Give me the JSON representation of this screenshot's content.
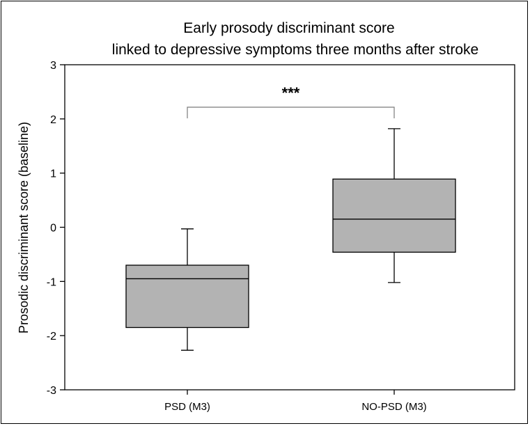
{
  "chart_data": {
    "type": "box",
    "title": [
      "Early prosody discriminant score",
      "linked to depressive symptoms three months after stroke"
    ],
    "xlabel": "",
    "ylabel": "Prosodic discriminant score  (baseline)",
    "ylim": [
      -3,
      3
    ],
    "yticks": [
      "3",
      "2",
      "1",
      "0",
      "-1",
      "-2",
      "-3"
    ],
    "ytick_values": [
      3,
      2,
      1,
      0,
      -1,
      -2,
      -3
    ],
    "categories": [
      "PSD (M3)",
      "NO-PSD (M3)"
    ],
    "boxes": [
      {
        "category": "PSD (M3)",
        "whisker_low": -2.27,
        "q1": -1.85,
        "median": -0.95,
        "q3": -0.7,
        "whisker_high": -0.03
      },
      {
        "category": "NO-PSD (M3)",
        "whisker_low": -1.02,
        "q1": -0.46,
        "median": 0.15,
        "q3": 0.89,
        "whisker_high": 1.82
      }
    ],
    "significance": {
      "label": "***",
      "between": [
        "PSD (M3)",
        "NO-PSD (M3)"
      ]
    },
    "box_color": "#b3b3b3",
    "grid": false,
    "legend": "none"
  }
}
